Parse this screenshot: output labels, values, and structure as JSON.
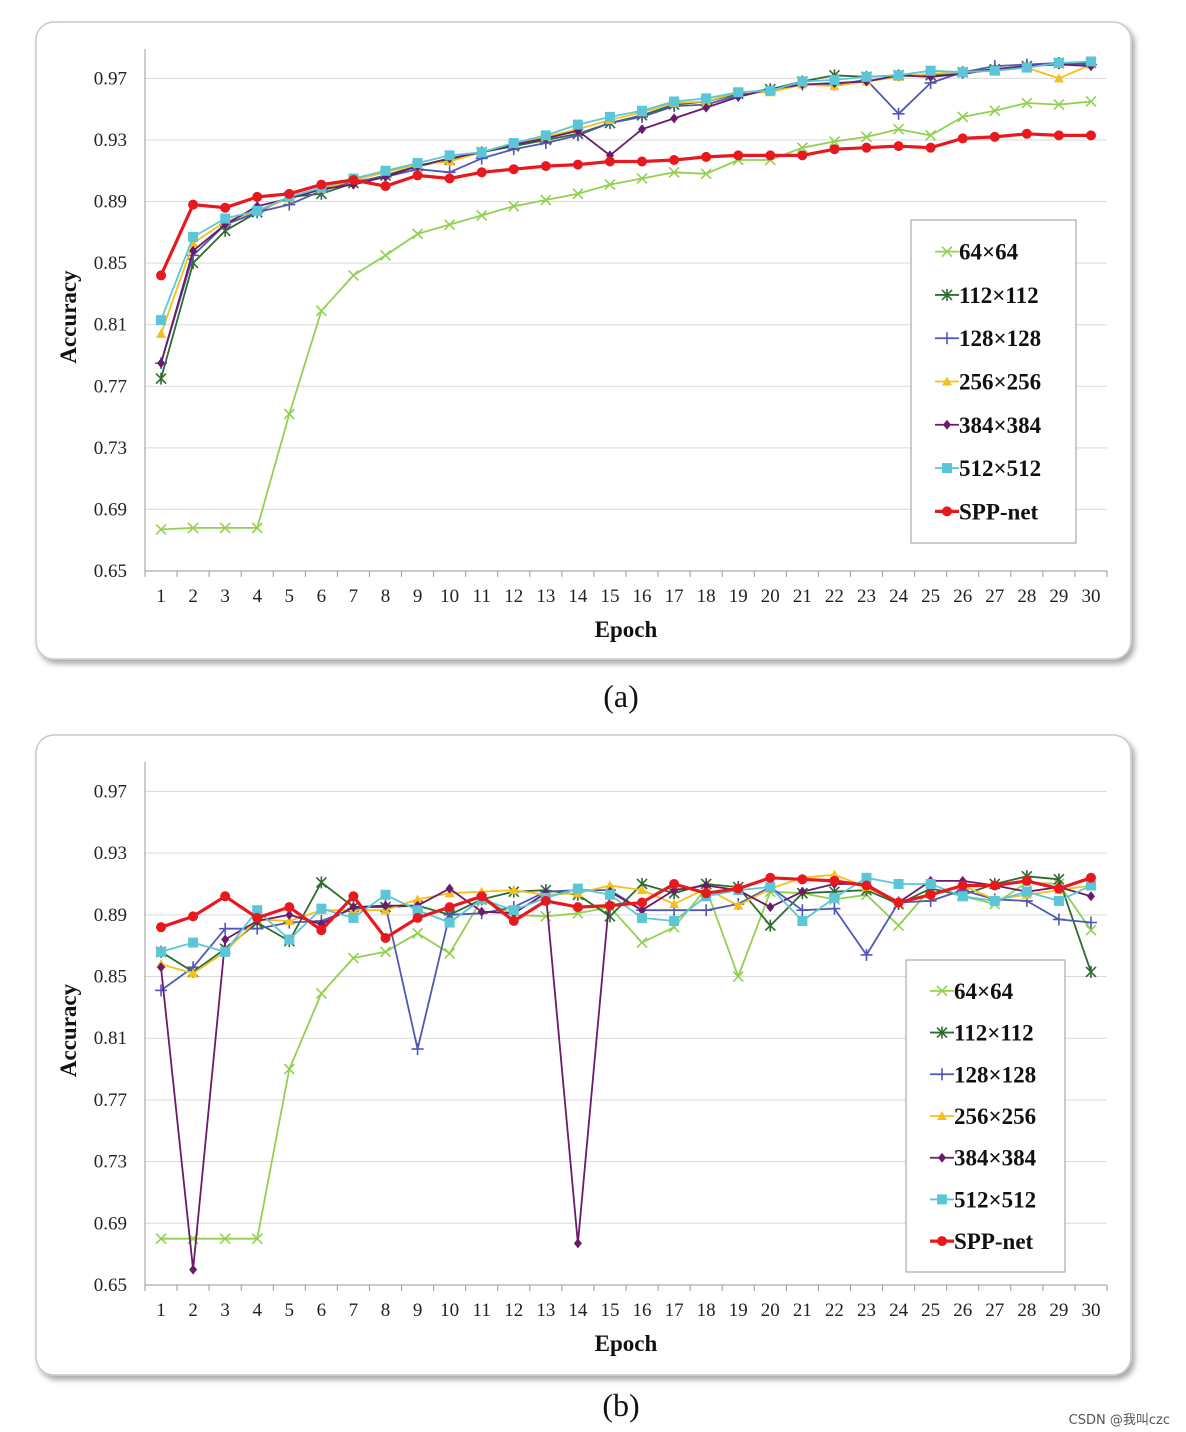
{
  "figure": {
    "caption_a": "(a)",
    "caption_b": "(b)",
    "watermark": "CSDN @我叫czc"
  },
  "chart_data": [
    {
      "type": "line",
      "panel": "(a)",
      "xlabel": "Epoch",
      "ylabel": "Accuracy",
      "ylim": [
        0.65,
        0.98
      ],
      "yticks": [
        "0.65",
        "0.69",
        "0.73",
        "0.77",
        "0.81",
        "0.85",
        "0.89",
        "0.93",
        "0.97"
      ],
      "x": [
        1,
        2,
        3,
        4,
        5,
        6,
        7,
        8,
        9,
        10,
        11,
        12,
        13,
        14,
        15,
        16,
        17,
        18,
        19,
        20,
        21,
        22,
        23,
        24,
        25,
        26,
        27,
        28,
        29,
        30
      ],
      "legend_position": "right",
      "series": [
        {
          "name": "64×64",
          "color": "#92d050",
          "marker": "x",
          "values": [
            0.677,
            0.678,
            0.678,
            0.678,
            0.752,
            0.819,
            0.842,
            0.855,
            0.869,
            0.875,
            0.881,
            0.887,
            0.891,
            0.895,
            0.901,
            0.905,
            0.909,
            0.908,
            0.917,
            0.917,
            0.925,
            0.929,
            0.932,
            0.937,
            0.933,
            0.945,
            0.949,
            0.954,
            0.953,
            0.955
          ]
        },
        {
          "name": "112×112",
          "color": "#2e6b2e",
          "marker": "star",
          "values": [
            0.775,
            0.85,
            0.871,
            0.883,
            0.893,
            0.895,
            0.902,
            0.907,
            0.913,
            0.917,
            0.922,
            0.926,
            0.93,
            0.934,
            0.941,
            0.946,
            0.953,
            0.955,
            0.96,
            0.963,
            0.968,
            0.972,
            0.971,
            0.972,
            0.972,
            0.974,
            0.976,
            0.978,
            0.98,
            0.98
          ]
        },
        {
          "name": "128×128",
          "color": "#4f58b4",
          "marker": "plus",
          "values": [
            0.785,
            0.855,
            0.875,
            0.883,
            0.888,
            0.897,
            0.903,
            0.906,
            0.911,
            0.909,
            0.918,
            0.924,
            0.928,
            0.933,
            0.941,
            0.945,
            0.952,
            0.953,
            0.959,
            0.963,
            0.966,
            0.966,
            0.969,
            0.947,
            0.967,
            0.974,
            0.978,
            0.979,
            0.98,
            0.979
          ]
        },
        {
          "name": "256×256",
          "color": "#f5bf1d",
          "marker": "triangle",
          "values": [
            0.804,
            0.863,
            0.877,
            0.884,
            0.892,
            0.898,
            0.904,
            0.909,
            0.914,
            0.916,
            0.922,
            0.928,
            0.932,
            0.937,
            0.943,
            0.948,
            0.954,
            0.955,
            0.961,
            0.961,
            0.966,
            0.965,
            0.968,
            0.971,
            0.973,
            0.974,
            0.975,
            0.977,
            0.97,
            0.979
          ]
        },
        {
          "name": "384×384",
          "color": "#6a1b6a",
          "marker": "diamond",
          "values": [
            0.785,
            0.858,
            0.875,
            0.887,
            0.892,
            0.898,
            0.901,
            0.906,
            0.913,
            0.918,
            0.922,
            0.927,
            0.931,
            0.936,
            0.92,
            0.937,
            0.944,
            0.951,
            0.958,
            0.963,
            0.966,
            0.967,
            0.968,
            0.972,
            0.971,
            0.973,
            0.976,
            0.978,
            0.979,
            0.978
          ]
        },
        {
          "name": "512×512",
          "color": "#5bc6d8",
          "marker": "square",
          "values": [
            0.813,
            0.867,
            0.879,
            0.884,
            0.893,
            0.899,
            0.905,
            0.91,
            0.915,
            0.92,
            0.922,
            0.928,
            0.933,
            0.94,
            0.945,
            0.949,
            0.955,
            0.957,
            0.961,
            0.962,
            0.968,
            0.969,
            0.971,
            0.972,
            0.975,
            0.974,
            0.975,
            0.977,
            0.98,
            0.981
          ]
        },
        {
          "name": "SPP-net",
          "color": "#e8191e",
          "marker": "circle",
          "values": [
            0.842,
            0.888,
            0.886,
            0.893,
            0.895,
            0.901,
            0.904,
            0.9,
            0.907,
            0.905,
            0.909,
            0.911,
            0.913,
            0.914,
            0.916,
            0.916,
            0.917,
            0.919,
            0.92,
            0.92,
            0.92,
            0.924,
            0.925,
            0.926,
            0.925,
            0.931,
            0.932,
            0.934,
            0.933,
            0.933
          ]
        }
      ]
    },
    {
      "type": "line",
      "panel": "(b)",
      "xlabel": "Epoch",
      "ylabel": "Accuracy",
      "ylim": [
        0.65,
        0.98
      ],
      "yticks": [
        "0.65",
        "0.69",
        "0.73",
        "0.77",
        "0.81",
        "0.85",
        "0.89",
        "0.93",
        "0.97"
      ],
      "x": [
        1,
        2,
        3,
        4,
        5,
        6,
        7,
        8,
        9,
        10,
        11,
        12,
        13,
        14,
        15,
        16,
        17,
        18,
        19,
        20,
        21,
        22,
        23,
        24,
        25,
        26,
        27,
        28,
        29,
        30
      ],
      "legend_position": "right",
      "series": [
        {
          "name": "64×64",
          "color": "#92d050",
          "marker": "x",
          "values": [
            0.68,
            0.68,
            0.68,
            0.68,
            0.79,
            0.839,
            0.862,
            0.866,
            0.878,
            0.865,
            0.9,
            0.89,
            0.889,
            0.891,
            0.895,
            0.872,
            0.882,
            0.907,
            0.85,
            0.905,
            0.904,
            0.9,
            0.903,
            0.883,
            0.907,
            0.902,
            0.897,
            0.911,
            0.91,
            0.88
          ]
        },
        {
          "name": "112×112",
          "color": "#2e6b2e",
          "marker": "star",
          "values": [
            0.866,
            0.853,
            0.868,
            0.885,
            0.873,
            0.911,
            0.895,
            0.895,
            0.896,
            0.89,
            0.9,
            0.905,
            0.906,
            0.903,
            0.889,
            0.91,
            0.904,
            0.91,
            0.908,
            0.883,
            0.904,
            0.905,
            0.906,
            0.897,
            0.907,
            0.903,
            0.91,
            0.915,
            0.913,
            0.853
          ]
        },
        {
          "name": "128×128",
          "color": "#4f58b4",
          "marker": "plus",
          "values": [
            0.841,
            0.856,
            0.881,
            0.881,
            0.885,
            0.886,
            0.894,
            0.896,
            0.803,
            0.89,
            0.891,
            0.895,
            0.905,
            0.906,
            0.906,
            0.893,
            0.893,
            0.893,
            0.897,
            0.908,
            0.893,
            0.894,
            0.864,
            0.898,
            0.899,
            0.906,
            0.9,
            0.899,
            0.887,
            0.885
          ]
        },
        {
          "name": "256×256",
          "color": "#f5bf1d",
          "marker": "triangle",
          "values": [
            0.858,
            0.852,
            0.866,
            0.887,
            0.886,
            0.893,
            0.893,
            0.893,
            0.9,
            0.904,
            0.905,
            0.906,
            0.903,
            0.904,
            0.909,
            0.906,
            0.897,
            0.907,
            0.896,
            0.907,
            0.914,
            0.916,
            0.908,
            0.898,
            0.903,
            0.909,
            0.9,
            0.903,
            0.906,
            0.909
          ]
        },
        {
          "name": "384×384",
          "color": "#6a1b6a",
          "marker": "diamond",
          "values": [
            0.856,
            0.66,
            0.874,
            0.886,
            0.89,
            0.884,
            0.895,
            0.896,
            0.896,
            0.907,
            0.892,
            0.891,
            0.904,
            0.677,
            0.905,
            0.893,
            0.906,
            0.909,
            0.906,
            0.895,
            0.905,
            0.91,
            0.91,
            0.898,
            0.912,
            0.912,
            0.909,
            0.905,
            0.908,
            0.902
          ]
        },
        {
          "name": "512×512",
          "color": "#5bc6d8",
          "marker": "square",
          "values": [
            0.866,
            0.872,
            0.866,
            0.893,
            0.874,
            0.894,
            0.888,
            0.903,
            0.893,
            0.885,
            0.9,
            0.893,
            0.901,
            0.907,
            0.903,
            0.888,
            0.886,
            0.902,
            0.906,
            0.908,
            0.886,
            0.901,
            0.914,
            0.91,
            0.91,
            0.902,
            0.899,
            0.905,
            0.899,
            0.909
          ]
        },
        {
          "name": "SPP-net",
          "color": "#e8191e",
          "marker": "circle",
          "values": [
            0.882,
            0.889,
            0.902,
            0.888,
            0.895,
            0.88,
            0.902,
            0.875,
            0.888,
            0.895,
            0.902,
            0.886,
            0.899,
            0.895,
            0.896,
            0.898,
            0.91,
            0.904,
            0.907,
            0.914,
            0.913,
            0.912,
            0.909,
            0.898,
            0.903,
            0.909,
            0.909,
            0.912,
            0.907,
            0.914
          ]
        }
      ]
    }
  ]
}
